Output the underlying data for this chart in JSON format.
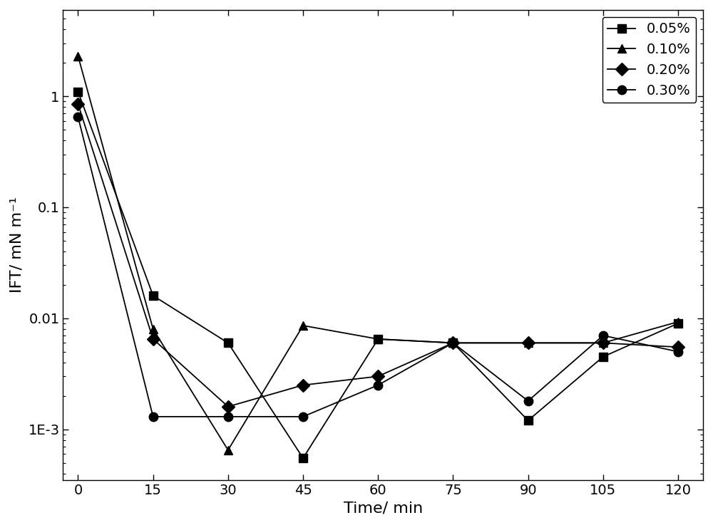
{
  "series": [
    {
      "label": "0.05%",
      "marker": "s",
      "x": [
        0,
        15,
        30,
        45,
        60,
        75,
        90,
        105,
        120
      ],
      "y": [
        1.1,
        0.016,
        0.006,
        0.00055,
        0.0065,
        0.006,
        0.0012,
        0.0045,
        0.009
      ]
    },
    {
      "label": "0.10%",
      "marker": "^",
      "x": [
        0,
        15,
        30,
        45,
        60,
        75,
        90,
        105,
        120
      ],
      "y": [
        2.3,
        0.008,
        0.00065,
        0.0086,
        0.0065,
        0.006,
        0.006,
        0.006,
        0.0093
      ]
    },
    {
      "label": "0.20%",
      "marker": "D",
      "x": [
        0,
        15,
        30,
        45,
        60,
        75,
        90,
        105,
        120
      ],
      "y": [
        0.85,
        0.0065,
        0.0016,
        0.0025,
        0.003,
        0.006,
        0.006,
        0.006,
        0.0055
      ]
    },
    {
      "label": "0.30%",
      "marker": "o",
      "x": [
        0,
        15,
        30,
        45,
        60,
        75,
        90,
        105,
        120
      ],
      "y": [
        0.65,
        0.0013,
        0.0013,
        0.0013,
        0.0025,
        0.006,
        0.0018,
        0.007,
        0.005
      ]
    }
  ],
  "xlabel": "Time/ min",
  "ylabel": "IFT/ mN m⁻¹",
  "line_color": "#000000",
  "marker_color": "#000000",
  "background_color": "#ffffff",
  "xlim": [
    -3,
    125
  ],
  "ylim_log": [
    0.00035,
    6.0
  ],
  "xticks": [
    0,
    15,
    30,
    45,
    60,
    75,
    90,
    105,
    120
  ],
  "ytick_labels": [
    "1E-3",
    "0.01",
    "0.1",
    "1"
  ],
  "ytick_values": [
    0.001,
    0.01,
    0.1,
    1.0
  ],
  "legend_loc": "upper right",
  "markersize": 9,
  "linewidth": 1.3,
  "font_size": 14
}
